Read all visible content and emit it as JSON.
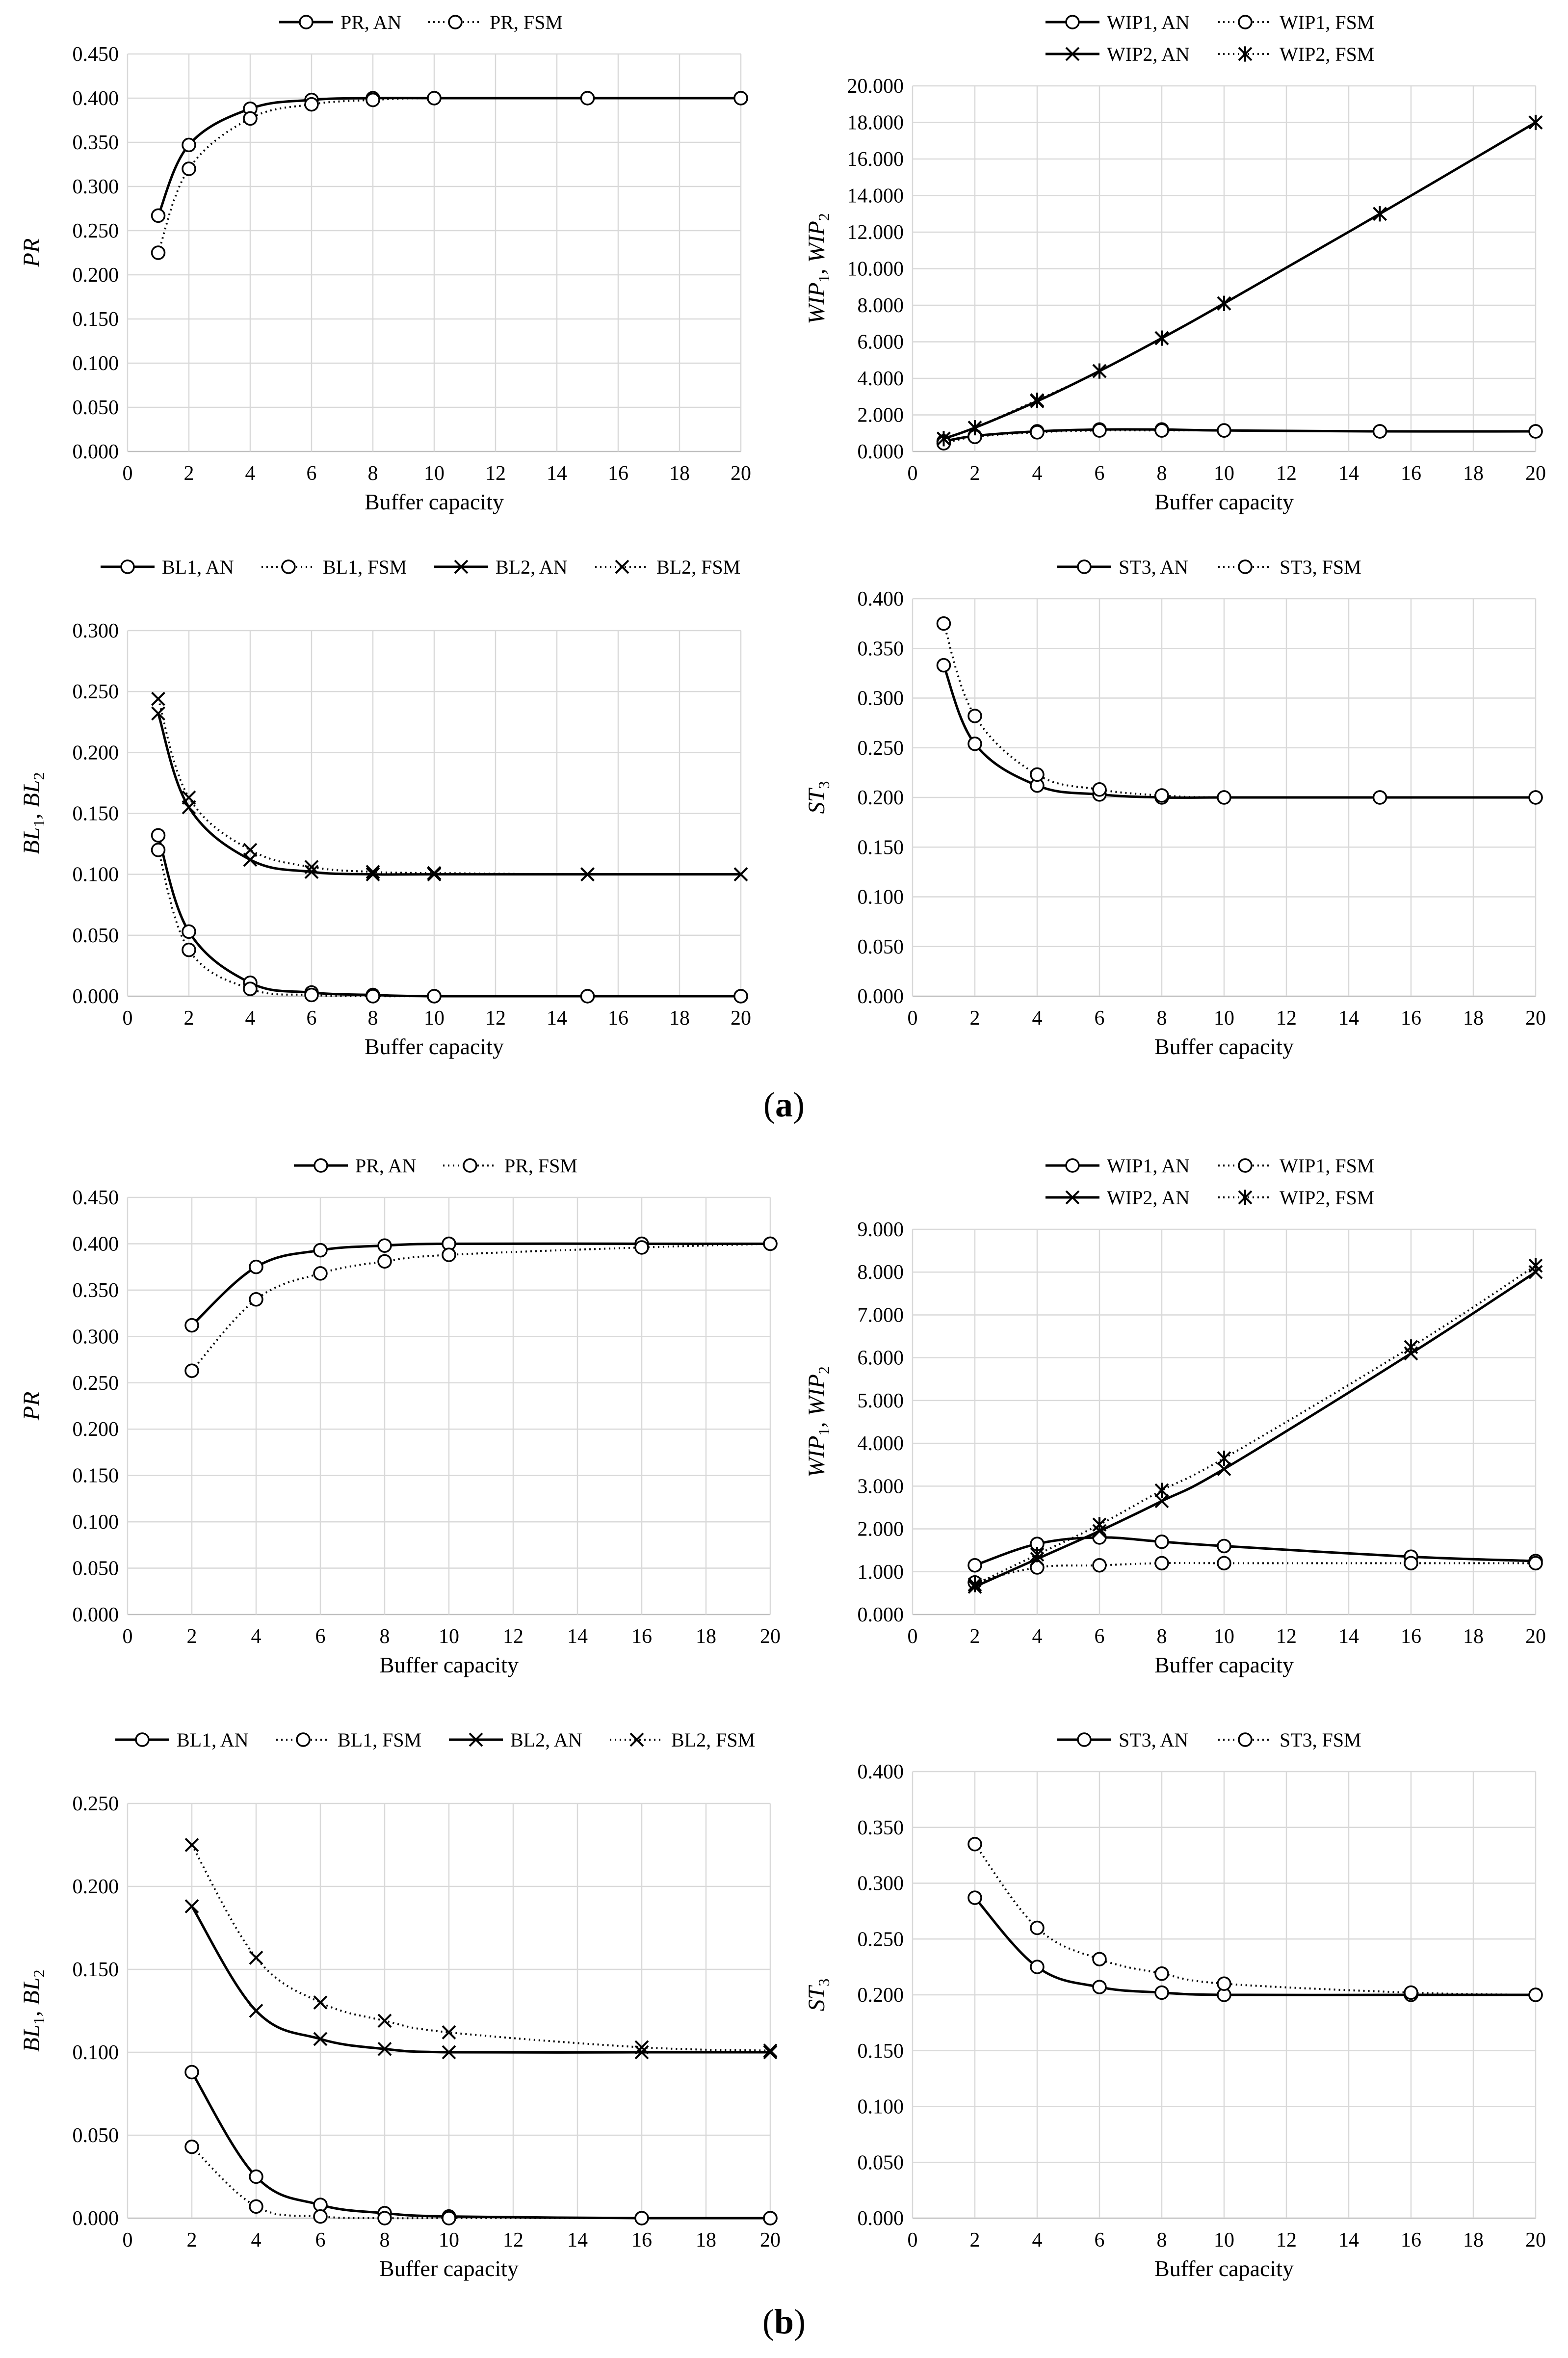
{
  "panels": {
    "a": {
      "open": "(",
      "letter": "a",
      "close": ")"
    },
    "b": {
      "open": "(",
      "letter": "b",
      "close": ")"
    }
  },
  "colors": {
    "line": "#000000",
    "grid": "#d9d9d9",
    "axis": "#bfbfbf"
  },
  "chart_data": [
    {
      "id": "a-pr",
      "type": "line",
      "panel": "a",
      "xlabel": "Buffer capacity",
      "ylabel": "PR",
      "xlim": [
        0,
        20
      ],
      "xticks": [
        0,
        2,
        4,
        6,
        8,
        10,
        12,
        14,
        16,
        18,
        20
      ],
      "ylim": [
        0,
        0.45
      ],
      "ystep": 0.05,
      "ydecimals": 3,
      "series": [
        {
          "name": "PR, AN",
          "style": "solid",
          "marker": "circle",
          "x": [
            1,
            2,
            4,
            6,
            8,
            10,
            15,
            20
          ],
          "values": [
            0.267,
            0.347,
            0.388,
            0.398,
            0.4,
            0.4,
            0.4,
            0.4
          ]
        },
        {
          "name": "PR, FSM",
          "style": "dotted",
          "marker": "circle",
          "x": [
            1,
            2,
            4,
            6,
            8,
            10,
            15,
            20
          ],
          "values": [
            0.225,
            0.32,
            0.377,
            0.393,
            0.398,
            0.4,
            0.4,
            0.4
          ]
        }
      ]
    },
    {
      "id": "a-wip",
      "type": "line",
      "panel": "a",
      "xlabel": "Buffer capacity",
      "ylabel": "WIP1, WIP2",
      "xlim": [
        0,
        20
      ],
      "xticks": [
        0,
        2,
        4,
        6,
        8,
        10,
        12,
        14,
        16,
        18,
        20
      ],
      "ylim": [
        0,
        20
      ],
      "ystep": 2,
      "ydecimals": 3,
      "series": [
        {
          "name": "WIP1, AN",
          "style": "solid",
          "marker": "circle",
          "x": [
            1,
            2,
            4,
            6,
            8,
            10,
            15,
            20
          ],
          "values": [
            0.55,
            0.85,
            1.1,
            1.2,
            1.2,
            1.15,
            1.1,
            1.1
          ]
        },
        {
          "name": "WIP1, FSM",
          "style": "dotted",
          "marker": "circle",
          "x": [
            1,
            2,
            4,
            6,
            8,
            10,
            15,
            20
          ],
          "values": [
            0.45,
            0.8,
            1.05,
            1.15,
            1.15,
            1.15,
            1.1,
            1.1
          ]
        },
        {
          "name": "WIP2, AN",
          "style": "solid",
          "marker": "x",
          "x": [
            1,
            2,
            4,
            6,
            8,
            10,
            15,
            20
          ],
          "values": [
            0.7,
            1.3,
            2.75,
            4.4,
            6.2,
            8.1,
            13.0,
            18.0
          ]
        },
        {
          "name": "WIP2, FSM",
          "style": "dotted",
          "marker": "star",
          "x": [
            1,
            2,
            4,
            6,
            8,
            10,
            15,
            20
          ],
          "values": [
            0.7,
            1.3,
            2.8,
            4.4,
            6.2,
            8.1,
            13.0,
            18.0
          ]
        }
      ]
    },
    {
      "id": "a-bl",
      "type": "line",
      "panel": "a",
      "xlabel": "Buffer capacity",
      "ylabel": "BL1, BL2",
      "xlim": [
        0,
        20
      ],
      "xticks": [
        0,
        2,
        4,
        6,
        8,
        10,
        12,
        14,
        16,
        18,
        20
      ],
      "ylim": [
        0,
        0.3
      ],
      "ystep": 0.05,
      "ydecimals": 3,
      "series": [
        {
          "name": "BL1, AN",
          "style": "solid",
          "marker": "circle",
          "x": [
            1,
            2,
            4,
            6,
            8,
            10,
            15,
            20
          ],
          "values": [
            0.132,
            0.053,
            0.011,
            0.003,
            0.001,
            0.0,
            0.0,
            0.0
          ]
        },
        {
          "name": "BL1, FSM",
          "style": "dotted",
          "marker": "circle",
          "x": [
            1,
            2,
            4,
            6,
            8,
            10,
            15,
            20
          ],
          "values": [
            0.12,
            0.038,
            0.006,
            0.001,
            0.0,
            0.0,
            0.0,
            0.0
          ]
        },
        {
          "name": "BL2, AN",
          "style": "solid",
          "marker": "x",
          "x": [
            1,
            2,
            4,
            6,
            8,
            10,
            15,
            20
          ],
          "values": [
            0.232,
            0.155,
            0.112,
            0.102,
            0.1,
            0.1,
            0.1,
            0.1
          ]
        },
        {
          "name": "BL2, FSM",
          "style": "dotted",
          "marker": "x",
          "x": [
            1,
            2,
            4,
            6,
            8,
            10,
            15,
            20
          ],
          "values": [
            0.244,
            0.163,
            0.12,
            0.106,
            0.102,
            0.101,
            0.1,
            0.1
          ]
        }
      ]
    },
    {
      "id": "a-st",
      "type": "line",
      "panel": "a",
      "xlabel": "Buffer capacity",
      "ylabel": "ST3",
      "xlim": [
        0,
        20
      ],
      "xticks": [
        0,
        2,
        4,
        6,
        8,
        10,
        12,
        14,
        16,
        18,
        20
      ],
      "ylim": [
        0,
        0.4
      ],
      "ystep": 0.05,
      "ydecimals": 3,
      "series": [
        {
          "name": "ST3, AN",
          "style": "solid",
          "marker": "circle",
          "x": [
            1,
            2,
            4,
            6,
            8,
            10,
            15,
            20
          ],
          "values": [
            0.333,
            0.254,
            0.212,
            0.203,
            0.2,
            0.2,
            0.2,
            0.2
          ]
        },
        {
          "name": "ST3, FSM",
          "style": "dotted",
          "marker": "circle",
          "x": [
            1,
            2,
            4,
            6,
            8,
            10,
            15,
            20
          ],
          "values": [
            0.375,
            0.282,
            0.223,
            0.208,
            0.202,
            0.2,
            0.2,
            0.2
          ]
        }
      ]
    },
    {
      "id": "b-pr",
      "type": "line",
      "panel": "b",
      "xlabel": "Buffer capacity",
      "ylabel": "PR",
      "xlim": [
        0,
        20
      ],
      "xticks": [
        0,
        2,
        4,
        6,
        8,
        10,
        12,
        14,
        16,
        18,
        20
      ],
      "ylim": [
        0,
        0.45
      ],
      "ystep": 0.05,
      "ydecimals": 3,
      "series": [
        {
          "name": "PR, AN",
          "style": "solid",
          "marker": "circle",
          "x": [
            2,
            4,
            6,
            8,
            10,
            16,
            20
          ],
          "values": [
            0.312,
            0.375,
            0.393,
            0.398,
            0.4,
            0.4,
            0.4
          ]
        },
        {
          "name": "PR, FSM",
          "style": "dotted",
          "marker": "circle",
          "x": [
            2,
            4,
            6,
            8,
            10,
            16,
            20
          ],
          "values": [
            0.263,
            0.34,
            0.368,
            0.381,
            0.388,
            0.396,
            0.4
          ]
        }
      ]
    },
    {
      "id": "b-wip",
      "type": "line",
      "panel": "b",
      "xlabel": "Buffer capacity",
      "ylabel": "WIP1, WIP2",
      "xlim": [
        0,
        20
      ],
      "xticks": [
        0,
        2,
        4,
        6,
        8,
        10,
        12,
        14,
        16,
        18,
        20
      ],
      "ylim": [
        0,
        9
      ],
      "ystep": 1,
      "ydecimals": 3,
      "series": [
        {
          "name": "WIP1, AN",
          "style": "solid",
          "marker": "circle",
          "x": [
            2,
            4,
            6,
            8,
            10,
            16,
            20
          ],
          "values": [
            1.15,
            1.65,
            1.8,
            1.7,
            1.6,
            1.35,
            1.25
          ]
        },
        {
          "name": "WIP1, FSM",
          "style": "dotted",
          "marker": "circle",
          "x": [
            2,
            4,
            6,
            8,
            10,
            16,
            20
          ],
          "values": [
            0.75,
            1.1,
            1.15,
            1.2,
            1.2,
            1.2,
            1.2
          ]
        },
        {
          "name": "WIP2, AN",
          "style": "solid",
          "marker": "x",
          "x": [
            2,
            4,
            6,
            8,
            10,
            16,
            20
          ],
          "values": [
            0.65,
            1.3,
            1.95,
            2.65,
            3.4,
            6.1,
            8.0
          ]
        },
        {
          "name": "WIP2, FSM",
          "style": "dotted",
          "marker": "star",
          "x": [
            2,
            4,
            6,
            8,
            10,
            16,
            20
          ],
          "values": [
            0.7,
            1.4,
            2.1,
            2.9,
            3.65,
            6.25,
            8.15
          ]
        }
      ]
    },
    {
      "id": "b-bl",
      "type": "line",
      "panel": "b",
      "xlabel": "Buffer capacity",
      "ylabel": "BL1, BL2",
      "xlim": [
        0,
        20
      ],
      "xticks": [
        0,
        2,
        4,
        6,
        8,
        10,
        12,
        14,
        16,
        18,
        20
      ],
      "ylim": [
        0,
        0.25
      ],
      "ystep": 0.05,
      "ydecimals": 3,
      "series": [
        {
          "name": "BL1, AN",
          "style": "solid",
          "marker": "circle",
          "x": [
            2,
            4,
            6,
            8,
            10,
            16,
            20
          ],
          "values": [
            0.088,
            0.025,
            0.008,
            0.003,
            0.001,
            0.0,
            0.0
          ]
        },
        {
          "name": "BL1, FSM",
          "style": "dotted",
          "marker": "circle",
          "x": [
            2,
            4,
            6,
            8,
            10,
            16,
            20
          ],
          "values": [
            0.043,
            0.007,
            0.001,
            0.0,
            0.0,
            0.0,
            0.0
          ]
        },
        {
          "name": "BL2, AN",
          "style": "solid",
          "marker": "x",
          "x": [
            2,
            4,
            6,
            8,
            10,
            16,
            20
          ],
          "values": [
            0.188,
            0.125,
            0.108,
            0.102,
            0.1,
            0.1,
            0.1
          ]
        },
        {
          "name": "BL2, FSM",
          "style": "dotted",
          "marker": "x",
          "x": [
            2,
            4,
            6,
            8,
            10,
            16,
            20
          ],
          "values": [
            0.225,
            0.157,
            0.13,
            0.119,
            0.112,
            0.103,
            0.101
          ]
        }
      ]
    },
    {
      "id": "b-st",
      "type": "line",
      "panel": "b",
      "xlabel": "Buffer capacity",
      "ylabel": "ST3",
      "xlim": [
        0,
        20
      ],
      "xticks": [
        0,
        2,
        4,
        6,
        8,
        10,
        12,
        14,
        16,
        18,
        20
      ],
      "ylim": [
        0,
        0.4
      ],
      "ystep": 0.05,
      "ydecimals": 3,
      "series": [
        {
          "name": "ST3, AN",
          "style": "solid",
          "marker": "circle",
          "x": [
            2,
            4,
            6,
            8,
            10,
            16,
            20
          ],
          "values": [
            0.287,
            0.225,
            0.207,
            0.202,
            0.2,
            0.2,
            0.2
          ]
        },
        {
          "name": "ST3, FSM",
          "style": "dotted",
          "marker": "circle",
          "x": [
            2,
            4,
            6,
            8,
            10,
            16,
            20
          ],
          "values": [
            0.335,
            0.26,
            0.232,
            0.219,
            0.21,
            0.202,
            0.2
          ]
        }
      ]
    }
  ]
}
